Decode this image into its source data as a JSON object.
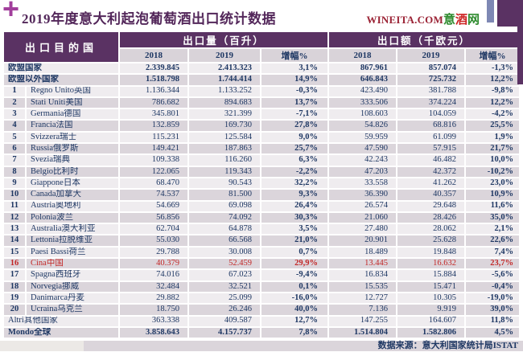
{
  "header": {
    "plus_mark": "+",
    "title": "2019年度意大利起泡葡萄酒出口统计数据",
    "logo": {
      "latin": "WINEITA.COM",
      "cjk_chars": [
        "意",
        "酒",
        "网"
      ]
    }
  },
  "chart_data": {
    "type": "table",
    "title": "2019年度意大利起泡葡萄酒出口统计数据",
    "corner_header": "出口目的国",
    "group_headers": [
      {
        "label": "出口量（百升）"
      },
      {
        "label": "出口额（千欧元）"
      }
    ],
    "sub_headers": [
      "2018",
      "2019",
      "增幅%",
      "2018",
      "2019",
      "增幅%"
    ],
    "rows": [
      {
        "rank": "",
        "name": "欧盟国家",
        "style": "summary",
        "values": [
          "2.339.845",
          "2.413.323",
          "3,1%",
          "867.961",
          "857.074",
          "-1,3%"
        ]
      },
      {
        "rank": "",
        "name": "欧盟以外国家",
        "style": "summary",
        "values": [
          "1.518.798",
          "1.744.414",
          "14,9%",
          "646.843",
          "725.732",
          "12,2%"
        ]
      },
      {
        "rank": "1",
        "name": "Regno Unito英国",
        "style": "",
        "values": [
          "1.136.344",
          "1.133.252",
          "-0,3%",
          "423.490",
          "381.788",
          "-9,8%"
        ]
      },
      {
        "rank": "2",
        "name": "Stati Uniti美国",
        "style": "",
        "values": [
          "786.682",
          "894.683",
          "13,7%",
          "333.506",
          "374.224",
          "12,2%"
        ]
      },
      {
        "rank": "3",
        "name": "Germania德国",
        "style": "",
        "values": [
          "345.801",
          "321.399",
          "-7,1%",
          "108.603",
          "104.059",
          "-4,2%"
        ]
      },
      {
        "rank": "4",
        "name": "Francia法国",
        "style": "",
        "values": [
          "132.859",
          "169.730",
          "27,8%",
          "54.826",
          "68.816",
          "25,5%"
        ]
      },
      {
        "rank": "5",
        "name": "Svizzera瑞士",
        "style": "",
        "values": [
          "115.231",
          "125.584",
          "9,0%",
          "59.959",
          "61.099",
          "1,9%"
        ]
      },
      {
        "rank": "6",
        "name": "Russia俄罗斯",
        "style": "",
        "values": [
          "149.421",
          "187.863",
          "25,7%",
          "47.590",
          "57.915",
          "21,7%"
        ]
      },
      {
        "rank": "7",
        "name": "Svezia瑞典",
        "style": "",
        "values": [
          "109.338",
          "116.260",
          "6,3%",
          "42.243",
          "46.482",
          "10,0%"
        ]
      },
      {
        "rank": "8",
        "name": "Belgio比利时",
        "style": "",
        "values": [
          "122.065",
          "119.343",
          "-2,2%",
          "47.203",
          "42.372",
          "-10,2%"
        ]
      },
      {
        "rank": "9",
        "name": "Giappone日本",
        "style": "",
        "values": [
          "68.470",
          "90.543",
          "32,2%",
          "33.558",
          "41.262",
          "23,0%"
        ]
      },
      {
        "rank": "10",
        "name": "Canada加拿大",
        "style": "",
        "values": [
          "74.537",
          "81.500",
          "9,3%",
          "36.390",
          "40.357",
          "10,9%"
        ]
      },
      {
        "rank": "11",
        "name": "Austria奥地利",
        "style": "",
        "values": [
          "54.669",
          "69.098",
          "26,4%",
          "26.574",
          "29.648",
          "11,6%"
        ]
      },
      {
        "rank": "12",
        "name": "Polonia波兰",
        "style": "",
        "values": [
          "56.856",
          "74.092",
          "30,3%",
          "21.060",
          "28.426",
          "35,0%"
        ]
      },
      {
        "rank": "13",
        "name": "Australia澳大利亚",
        "style": "",
        "values": [
          "62.704",
          "64.878",
          "3,5%",
          "27.480",
          "28.062",
          "2,1%"
        ]
      },
      {
        "rank": "14",
        "name": "Lettonia拉脱维亚",
        "style": "",
        "values": [
          "55.030",
          "66.568",
          "21,0%",
          "20.901",
          "25.628",
          "22,6%"
        ]
      },
      {
        "rank": "15",
        "name": "Paesi Bassi荷兰",
        "style": "",
        "values": [
          "29.788",
          "30.008",
          "0,7%",
          "18.489",
          "19.848",
          "7,4%"
        ]
      },
      {
        "rank": "16",
        "name": "Cina中国",
        "style": "highlight",
        "values": [
          "40.379",
          "52.459",
          "29,9%",
          "13.445",
          "16.632",
          "23,7%"
        ]
      },
      {
        "rank": "17",
        "name": "Spagna西班牙",
        "style": "",
        "values": [
          "74.016",
          "67.023",
          "-9,4%",
          "16.834",
          "15.884",
          "-5,6%"
        ]
      },
      {
        "rank": "18",
        "name": "Norvegia挪威",
        "style": "",
        "values": [
          "32.484",
          "32.521",
          "0,1%",
          "15.535",
          "15.471",
          "-0,4%"
        ]
      },
      {
        "rank": "19",
        "name": "Danimarca丹麦",
        "style": "",
        "values": [
          "29.882",
          "25.099",
          "-16,0%",
          "12.727",
          "10.305",
          "-19,0%"
        ]
      },
      {
        "rank": "20",
        "name": "Ucraina乌克兰",
        "style": "",
        "values": [
          "18.750",
          "26.246",
          "40,0%",
          "7.136",
          "9.919",
          "39,0%"
        ]
      },
      {
        "rank": "",
        "name": "Altri其他国家",
        "style": "",
        "values": [
          "363.338",
          "409.587",
          "12,7%",
          "147.255",
          "164.607",
          "11,8%"
        ]
      },
      {
        "rank": "",
        "name": "Mondo全球",
        "style": "summary",
        "values": [
          "3.858.643",
          "4.157.737",
          "7,8%",
          "1.514.804",
          "1.582.806",
          "4,5%"
        ]
      }
    ],
    "source": "数据来源：意大利国家统计局ISTAT"
  },
  "colors": {
    "header_purple": "#5a3263",
    "title_purple": "#53275a",
    "plus_magenta": "#a23f9c",
    "text_navy": "#1f3864",
    "highlight_red": "#c22727",
    "row_light": "#efecef",
    "row_dark": "#dbd5db",
    "subhead_bg": "#d9d3d9",
    "footer_left": "#ece9e6",
    "logo_maroon": "#9b2335",
    "logo_green": "#2e8b2e",
    "logo_red": "#cc2222",
    "ribbon_blue": "#7e88b4"
  }
}
